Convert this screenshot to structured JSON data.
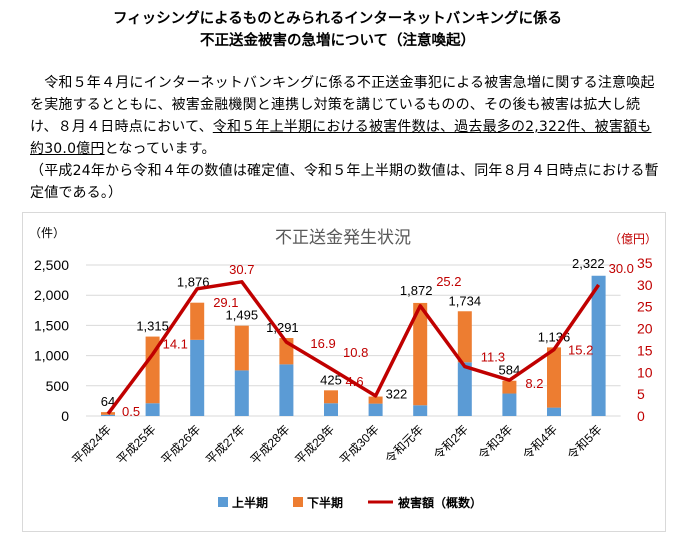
{
  "title_lines": [
    "フィッシングによるものとみられるインターネットバンキングに係る",
    "不正送金被害の急増について（注意喚起）"
  ],
  "paragraph": {
    "part1": "　令和５年４月にインターネットバンキングに係る不正送金事犯による被害急増に関する注意喚起を実施するとともに、被害金融機関と連携し対策を講じているものの、その後も被害は拡大し続け、８月４日時点において、",
    "underlined": "令和５年上半期における被害件数は、過去最多の2,322件、被害額も約30.0億円",
    "part2": "となっています。",
    "note": "（平成24年から令和４年の数値は確定値、令和５年上半期の数値は、同年８月４日時点における暫定値である。）"
  },
  "chart_data": {
    "type": "bar",
    "title": "不正送金発生状況",
    "ylabel": "（件）",
    "y2label": "（億円）",
    "ylim": [
      0,
      2500
    ],
    "yticks": [
      "0",
      "500",
      "1,000",
      "1,500",
      "2,000",
      "2,500"
    ],
    "y2lim": [
      0,
      35
    ],
    "y2ticks": [
      "0",
      "5",
      "10",
      "15",
      "20",
      "25",
      "30",
      "35"
    ],
    "grid": true,
    "legend_placement": "bottom",
    "categories": [
      "平成24年",
      "平成25年",
      "平成26年",
      "平成27年",
      "平成28年",
      "平成29年",
      "平成30年",
      "令和元年",
      "令和2年",
      "令和3年",
      "令和4年",
      "令和5年"
    ],
    "series": [
      {
        "name": "上半期",
        "type": "bar",
        "color": "#5b9bd5",
        "values": [
          20,
          211,
          1261,
          755,
          855,
          211,
          205,
          178,
          889,
          372,
          139,
          2322
        ]
      },
      {
        "name": "下半期",
        "type": "bar",
        "color": "#ed7d31",
        "values": [
          44,
          1104,
          615,
          740,
          436,
          214,
          117,
          1694,
          845,
          212,
          997,
          0
        ]
      },
      {
        "name": "被害額（概数）",
        "type": "line",
        "axis": "right",
        "color": "#c00000",
        "values": [
          0.5,
          14.1,
          29.1,
          30.7,
          16.9,
          10.8,
          4.6,
          25.2,
          11.3,
          8.2,
          15.2,
          30.0
        ]
      }
    ],
    "total_labels": [
      "64",
      "1,315",
      "1,876",
      "1,495",
      "1,291",
      "425",
      "322",
      "1,872",
      "1,734",
      "584",
      "1,136",
      "2,322"
    ],
    "line_labels": [
      "0.5",
      "14.1",
      "29.1",
      "30.7",
      "16.9",
      "10.8",
      "4.6",
      "25.2",
      "11.3",
      "8.2",
      "15.2",
      "30.0"
    ]
  }
}
